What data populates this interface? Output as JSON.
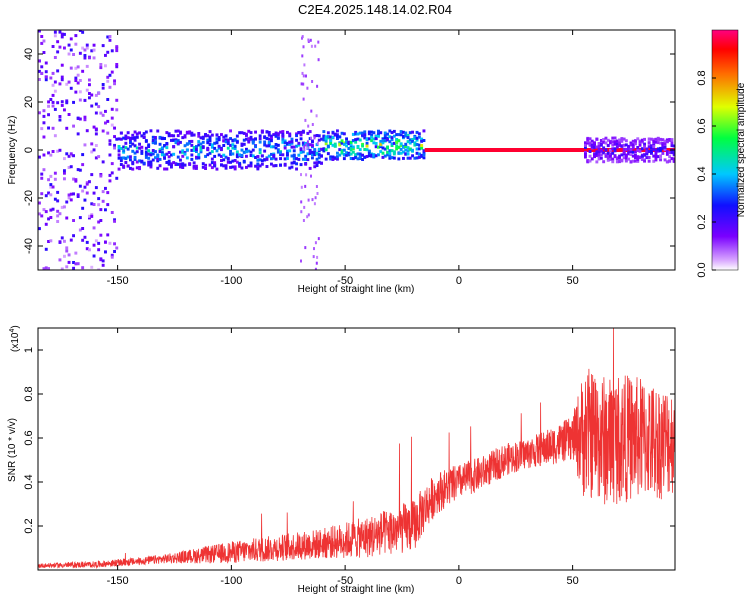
{
  "figure": {
    "title": "C2E4.2025.148.14.02.R04"
  },
  "chart_data": [
    {
      "type": "heatmap",
      "title": "C2E4.2025.148.14.02.R04",
      "xlabel": "Height of straight line (km)",
      "ylabel": "Frequency (Hz)",
      "xlim": [
        -185,
        95
      ],
      "ylim": [
        -50,
        50
      ],
      "x_ticks": [
        -150,
        -100,
        -50,
        0,
        50
      ],
      "x_tick_labels": [
        "-150",
        "-100",
        "-50",
        "0",
        "50"
      ],
      "y_ticks": [
        -40,
        -20,
        0,
        20,
        40
      ],
      "y_tick_labels": [
        "-40",
        "-20",
        "0",
        "20",
        "40"
      ],
      "colorbar": {
        "label": "Normalized spectral amplitude",
        "range": [
          0.0,
          1.0
        ],
        "ticks": [
          0.0,
          0.2,
          0.4,
          0.6,
          0.8
        ],
        "tick_labels": [
          "0.0",
          "0.2",
          "0.4",
          "0.6",
          "0.8"
        ],
        "colormap": "rainbow (white-violet-blue-cyan-green-yellow-red-magenta)"
      },
      "bands": [
        {
          "x_from": -185,
          "x_to": -150,
          "freq_center": 0,
          "freq_halfwidth": 50,
          "amplitude": 0.18
        },
        {
          "x_from": -150,
          "x_to": -60,
          "freq_center": 0,
          "freq_halfwidth": 8,
          "amplitude": 0.35
        },
        {
          "x_from": -60,
          "x_to": -15,
          "freq_center": 2,
          "freq_halfwidth": 6,
          "amplitude": 0.5
        },
        {
          "x_from": -15,
          "x_to": 95,
          "freq_center": 0,
          "freq_halfwidth": 1,
          "amplitude": 0.95
        },
        {
          "x_from": 55,
          "x_to": 95,
          "freq_center": 0,
          "freq_halfwidth": 5,
          "amplitude": 0.2
        }
      ],
      "grid": false
    },
    {
      "type": "line",
      "xlabel": "Height of straight line (km)",
      "ylabel": "SNR (10 * v/v)",
      "y_multiplier_label": "(x10",
      "y_multiplier_exponent": "4",
      "xlim": [
        -185,
        95
      ],
      "ylim": [
        0,
        1.1
      ],
      "x_ticks": [
        -150,
        -100,
        -50,
        0,
        50
      ],
      "x_tick_labels": [
        "-150",
        "-100",
        "-50",
        "0",
        "50"
      ],
      "y_ticks": [
        0.2,
        0.4,
        0.6,
        0.8,
        1
      ],
      "y_tick_labels": [
        "0.2",
        "0.4",
        "0.6",
        "0.8",
        "1"
      ],
      "series": [
        {
          "color": "#ee3333",
          "trend": {
            "x": [
              -185,
              -160,
              -140,
              -120,
              -100,
              -80,
              -60,
              -40,
              -20,
              -15,
              -10,
              0,
              10,
              20,
              30,
              40,
              50,
              55,
              60,
              65,
              70,
              80,
              90,
              95
            ],
            "y": [
              0.02,
              0.025,
              0.04,
              0.06,
              0.08,
              0.1,
              0.12,
              0.15,
              0.2,
              0.28,
              0.35,
              0.4,
              0.44,
              0.5,
              0.53,
              0.56,
              0.6,
              0.62,
              0.62,
              0.58,
              0.6,
              0.6,
              0.58,
              0.6
            ]
          },
          "noise_amplitude": {
            "x": [
              -185,
              -130,
              -100,
              -60,
              -20,
              -12,
              0,
              30,
              50,
              55,
              70,
              95
            ],
            "y": [
              0.01,
              0.02,
              0.05,
              0.07,
              0.12,
              0.1,
              0.08,
              0.07,
              0.1,
              0.3,
              0.3,
              0.25
            ]
          }
        }
      ],
      "grid": false
    }
  ]
}
